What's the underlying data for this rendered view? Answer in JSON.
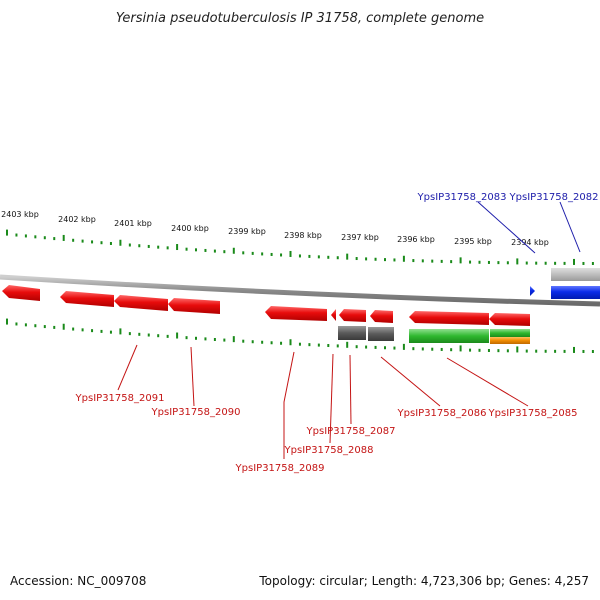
{
  "title": "Yersinia pseudotuberculosis IP 31758, complete genome",
  "scale_labels": [
    "2403 kbp",
    "2402 kbp",
    "2401 kbp",
    "2400 kbp",
    "2399 kbp",
    "2398 kbp",
    "2397 kbp",
    "2396 kbp",
    "2395 kbp",
    "2394 kbp"
  ],
  "genes_top": [
    {
      "label": "YpsIP31758_2083"
    },
    {
      "label": "YpsIP31758_2082"
    }
  ],
  "genes_bottom": [
    {
      "label": "YpsIP31758_2091"
    },
    {
      "label": "YpsIP31758_2090"
    },
    {
      "label": "YpsIP31758_2089"
    },
    {
      "label": "YpsIP31758_2088"
    },
    {
      "label": "YpsIP31758_2087"
    },
    {
      "label": "YpsIP31758_2086"
    },
    {
      "label": "YpsIP31758_2085"
    }
  ],
  "colors": {
    "forward_gene": "#0a2be8",
    "reverse_gene": "#e80c0c",
    "pseudo_feature": "#5a5a5a",
    "green_feature": "#2fb82f",
    "orange_feature": "#f08c00",
    "scale_ticks": "#1a8a1a",
    "backbone": "#8a8a8a",
    "top_label": "#1c1caa",
    "bottom_label": "#c41414"
  },
  "footer": {
    "accession": "Accession: NC_009708",
    "summary": "Topology: circular; Length: 4,723,306 bp; Genes: 4,257"
  }
}
